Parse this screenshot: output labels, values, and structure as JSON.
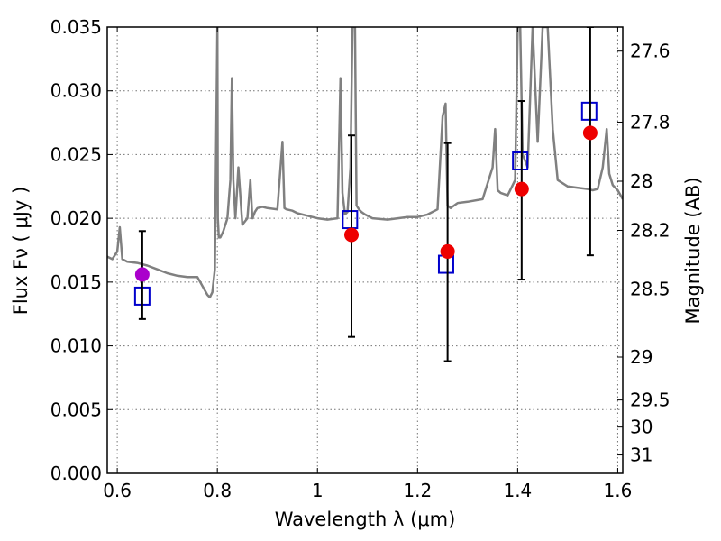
{
  "chart_data": {
    "type": "scatter",
    "xlabel": "Wavelength  λ (μm)",
    "ylabel": "Flux  Fν  ( μJy )",
    "ylabel_right": "Magnitude (AB)",
    "xlim": [
      0.58,
      1.61
    ],
    "ylim": [
      0.0,
      0.035
    ],
    "grid": true,
    "x_ticks": [
      {
        "value": 0.6,
        "label": "0.6"
      },
      {
        "value": 0.8,
        "label": "0.8"
      },
      {
        "value": 1.0,
        "label": "1"
      },
      {
        "value": 1.2,
        "label": "1.2"
      },
      {
        "value": 1.4,
        "label": "1.4"
      },
      {
        "value": 1.6,
        "label": "1.6"
      }
    ],
    "y_ticks": [
      {
        "value": 0.0,
        "label": "0.000"
      },
      {
        "value": 0.005,
        "label": "0.005"
      },
      {
        "value": 0.01,
        "label": "0.010"
      },
      {
        "value": 0.015,
        "label": "0.015"
      },
      {
        "value": 0.02,
        "label": "0.020"
      },
      {
        "value": 0.025,
        "label": "0.025"
      },
      {
        "value": 0.03,
        "label": "0.030"
      },
      {
        "value": 0.035,
        "label": "0.035"
      }
    ],
    "right_ticks": [
      {
        "mag": 27.6,
        "label": "27.6"
      },
      {
        "mag": 27.8,
        "label": "27.8"
      },
      {
        "mag": 28.0,
        "label": "28"
      },
      {
        "mag": 28.2,
        "label": "28.2"
      },
      {
        "mag": 28.5,
        "label": "28.5"
      },
      {
        "mag": 29.0,
        "label": "29"
      },
      {
        "mag": 29.5,
        "label": "29.5"
      },
      {
        "mag": 30.0,
        "label": "30"
      },
      {
        "mag": 31.0,
        "label": "31"
      }
    ],
    "series": [
      {
        "kind": "spectrum",
        "color": "#808080",
        "x": [
          0.58,
          0.59,
          0.6,
          0.605,
          0.61,
          0.62,
          0.64,
          0.66,
          0.68,
          0.7,
          0.72,
          0.74,
          0.76,
          0.78,
          0.785,
          0.79,
          0.795,
          0.8,
          0.801,
          0.803,
          0.806,
          0.812,
          0.82,
          0.826,
          0.829,
          0.832,
          0.836,
          0.842,
          0.85,
          0.86,
          0.866,
          0.87,
          0.875,
          0.88,
          0.89,
          0.9,
          0.92,
          0.93,
          0.934,
          0.938,
          0.95,
          0.96,
          0.98,
          1.0,
          1.02,
          1.04,
          1.046,
          1.05,
          1.055,
          1.06,
          1.066,
          1.07,
          1.075,
          1.078,
          1.083,
          1.088,
          1.095,
          1.11,
          1.14,
          1.18,
          1.2,
          1.22,
          1.24,
          1.25,
          1.256,
          1.26,
          1.266,
          1.28,
          1.3,
          1.33,
          1.35,
          1.355,
          1.36,
          1.366,
          1.38,
          1.395,
          1.4,
          1.405,
          1.41,
          1.42,
          1.43,
          1.44,
          1.45,
          1.46,
          1.47,
          1.48,
          1.5,
          1.52,
          1.54,
          1.55,
          1.56,
          1.57,
          1.578,
          1.583,
          1.59,
          1.6,
          1.61
        ],
        "y": [
          0.017,
          0.0168,
          0.0174,
          0.0193,
          0.0168,
          0.0166,
          0.0165,
          0.0163,
          0.016,
          0.0157,
          0.0155,
          0.0154,
          0.0154,
          0.014,
          0.0138,
          0.0142,
          0.016,
          0.035,
          0.02,
          0.0185,
          0.0185,
          0.019,
          0.02,
          0.023,
          0.031,
          0.023,
          0.02,
          0.024,
          0.0195,
          0.02,
          0.023,
          0.02,
          0.0205,
          0.0208,
          0.0209,
          0.0208,
          0.0207,
          0.026,
          0.0208,
          0.0207,
          0.0206,
          0.0204,
          0.0202,
          0.02,
          0.0199,
          0.02,
          0.031,
          0.022,
          0.0203,
          0.0205,
          0.024,
          0.035,
          0.035,
          0.021,
          0.0207,
          0.0205,
          0.0203,
          0.02,
          0.0199,
          0.0201,
          0.0201,
          0.0203,
          0.0207,
          0.028,
          0.029,
          0.021,
          0.0208,
          0.0212,
          0.0213,
          0.0215,
          0.024,
          0.027,
          0.0222,
          0.022,
          0.0218,
          0.023,
          0.035,
          0.035,
          0.025,
          0.024,
          0.035,
          0.026,
          0.035,
          0.035,
          0.027,
          0.023,
          0.0225,
          0.0224,
          0.0223,
          0.0222,
          0.0223,
          0.024,
          0.027,
          0.0235,
          0.0226,
          0.0222,
          0.0215
        ]
      },
      {
        "kind": "points",
        "color": "#0000cc",
        "marker": "open-square",
        "x": [
          0.65,
          1.065,
          1.257,
          1.405,
          1.543
        ],
        "y": [
          0.0139,
          0.0199,
          0.0164,
          0.0245,
          0.0284
        ]
      },
      {
        "kind": "points",
        "color": "#ee0000",
        "marker": "filled-circle",
        "x": [
          1.068,
          1.26,
          1.408,
          1.545
        ],
        "y": [
          0.0187,
          0.0174,
          0.0223,
          0.0267
        ]
      },
      {
        "kind": "points",
        "color": "#aa00cc",
        "marker": "filled-circle",
        "x": [
          0.65
        ],
        "y": [
          0.0156
        ]
      },
      {
        "kind": "errorbars",
        "color": "#000000",
        "x": [
          0.65,
          1.068,
          1.26,
          1.408,
          1.545
        ],
        "low": [
          0.0121,
          0.0107,
          0.0088,
          0.0152,
          0.0171
        ],
        "high": [
          0.019,
          0.0265,
          0.0259,
          0.0292,
          0.035
        ]
      }
    ]
  }
}
